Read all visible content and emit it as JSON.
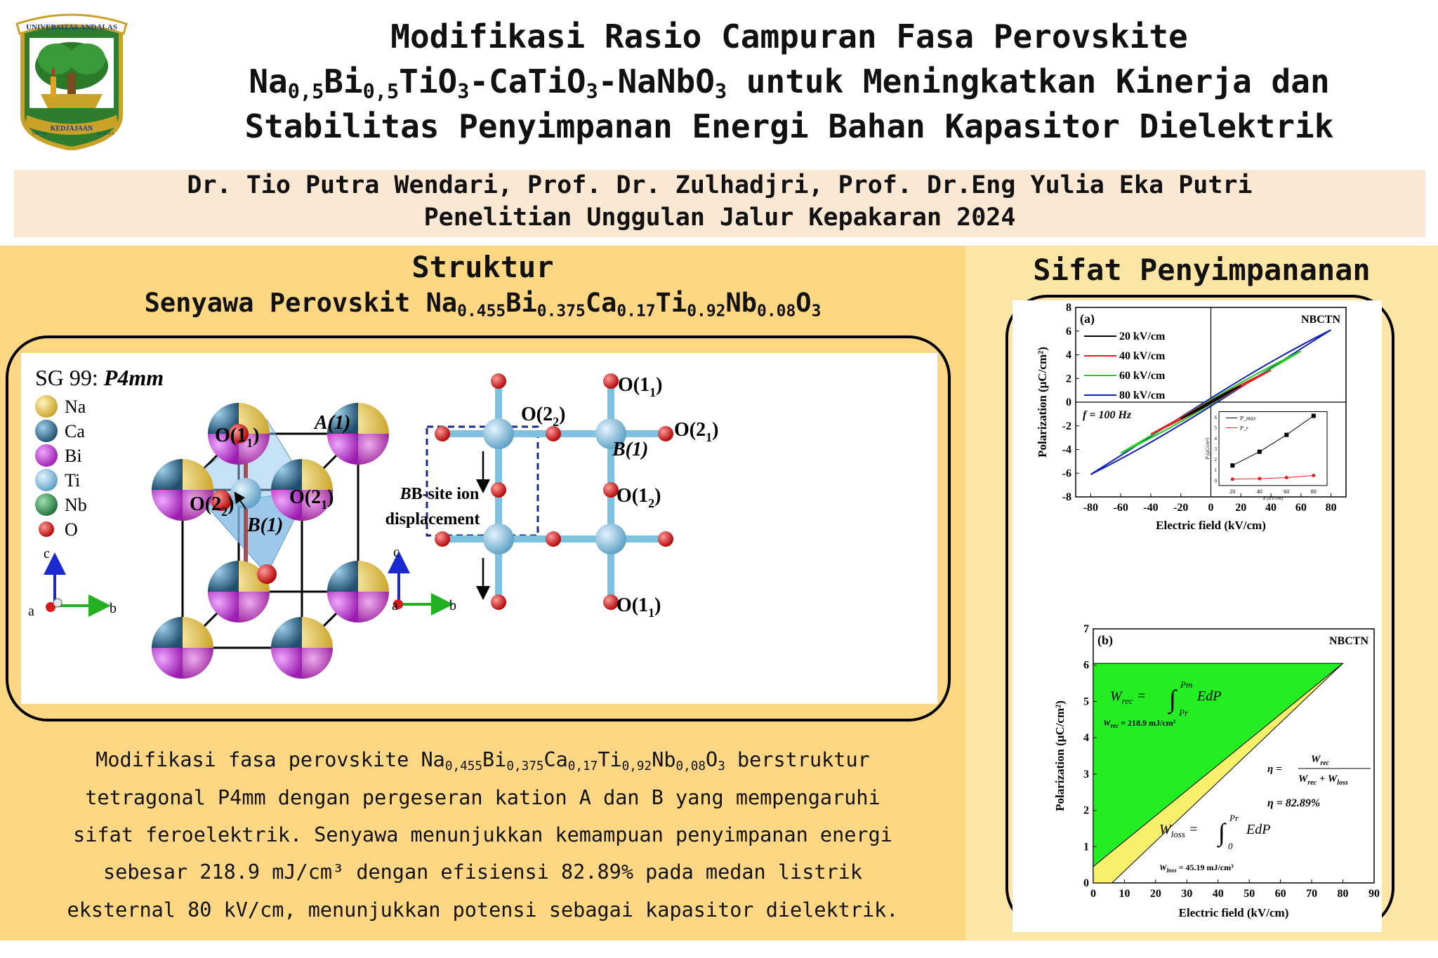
{
  "logo": {
    "top_text": "UNIVERSITAS ANDALAS",
    "ribbon_text": "KEDJAJAAN",
    "left_text": "UNTUK",
    "right_text": "BANGSA"
  },
  "title": {
    "line1": "Modifikasi Rasio Campuran Fasa Perovskite",
    "line2": {
      "t1": "Na",
      "s1": "0,5",
      "t2": "Bi",
      "s2": "0,5",
      "t3": "TiO",
      "s3": "3",
      "t4": "-CaTiO",
      "s4": "3",
      "t5": "-NaNbO",
      "s5": "3",
      "t6": " untuk Meningkatkan Kinerja dan"
    },
    "line3": "Stabilitas Penyimpanan Energi Bahan Kapasitor Dielektrik"
  },
  "authors": "Dr. Tio Putra Wendari, Prof. Dr. Zulhadjri, Prof. Dr.Eng Yulia Eka Putri",
  "program": "Penelitian Unggulan Jalur Kepakaran 2024",
  "left": {
    "heading": "Struktur",
    "subheading": {
      "prefix": "Senyawa Perovskit ",
      "e1": "Na",
      "n1": "0.455",
      "e2": "Bi",
      "n2": "0.375",
      "e3": "Ca",
      "n3": "0.17",
      "e4": "Ti",
      "n4": "0.92",
      "e5": "Nb",
      "n5": "0.08",
      "e6": "O",
      "n6": "3"
    },
    "structure": {
      "space_group_prefix": "SG 99: ",
      "space_group": "P4mm",
      "legend": [
        {
          "label": "Na",
          "color": "#e8c43c"
        },
        {
          "label": "Ca",
          "color": "#2f6e8e"
        },
        {
          "label": "Bi",
          "color": "#c43cd6"
        },
        {
          "label": "Ti",
          "color": "#7ec0e0"
        },
        {
          "label": "Nb",
          "color": "#2e8b4e"
        },
        {
          "label": "O",
          "color": "#d81c1c"
        }
      ],
      "labels": {
        "O11": "O(1",
        "O22": "O(2",
        "O21": "O(2",
        "A1": "A(1)",
        "B1": "B(1)",
        "O12": "O(1",
        "sub1": "1",
        "sub2": "2",
        "close": ")",
        "bsite1": "B-site ion",
        "bsite2": "displacement"
      },
      "axes": {
        "c": "c",
        "a": "a",
        "b": "b"
      }
    },
    "description": {
      "l1_pre": "Modifikasi fasa perovskite ",
      "f": {
        "e1": "Na",
        "n1": "0,455",
        "e2": "Bi",
        "n2": "0,375",
        "e3": "Ca",
        "n3": "0,17",
        "e4": "Ti",
        "n4": "0,92",
        "e5": "Nb",
        "n5": "0,08",
        "e6": "O",
        "n6": "3"
      },
      "l1_post": " berstruktur",
      "l2": "tetragonal P4mm dengan pergeseran kation A dan B yang mempengaruhi",
      "l3": "sifat feroelektrik. Senyawa menunjukkan kemampuan penyimpanan energi",
      "l4": "sebesar 218.9 mJ/cm³ dengan efisiensi 82.89% pada medan listrik",
      "l5": "eksternal 80 kV/cm, menunjukkan potensi sebagai kapasitor dielektrik."
    }
  },
  "right": {
    "heading": "Sifat Penyimpananan"
  },
  "chart_data": [
    {
      "type": "line",
      "panel": "(a)",
      "tag": "NBCTN",
      "xlabel": "Electric field (kV/cm)",
      "ylabel": "Polarization (μC/cm²)",
      "xlim": [
        -90,
        90
      ],
      "ylim": [
        -8,
        8
      ],
      "xticks": [
        -80,
        -60,
        -40,
        -20,
        0,
        20,
        40,
        60,
        80
      ],
      "yticks": [
        -8,
        -6,
        -4,
        -2,
        0,
        2,
        4,
        6,
        8
      ],
      "legend_position": "top-left",
      "note": "f = 100 Hz",
      "series": [
        {
          "name": "20 kV/cm",
          "color": "#000000",
          "emax": 20,
          "pmax": 1.4,
          "pr": 0.1
        },
        {
          "name": "40 kV/cm",
          "color": "#e02020",
          "emax": 40,
          "pmax": 2.7,
          "pr": 0.15
        },
        {
          "name": "60 kV/cm",
          "color": "#22cc22",
          "emax": 60,
          "pmax": 4.3,
          "pr": 0.25
        },
        {
          "name": "80 kV/cm",
          "color": "#1020b0",
          "emax": 80,
          "pmax": 6.1,
          "pr": 0.45
        }
      ],
      "inset": {
        "xlabel": "E (kV/cm)",
        "ylabel": "P (μC/cm²)",
        "x": [
          20,
          40,
          60,
          80
        ],
        "xticks": [
          20,
          40,
          60,
          80
        ],
        "yticks": [
          0,
          1,
          2,
          3,
          4,
          5,
          6
        ],
        "series": [
          {
            "name": "P_max",
            "values": [
              1.4,
              2.7,
              4.3,
              6.1
            ],
            "color": "#000000"
          },
          {
            "name": "P_r",
            "values": [
              0.1,
              0.15,
              0.25,
              0.45
            ],
            "color": "#e02020"
          }
        ]
      }
    },
    {
      "type": "area",
      "panel": "(b)",
      "tag": "NBCTN",
      "xlabel": "Electric field (kV/cm)",
      "ylabel": "Polarization (μC/cm²)",
      "xlim": [
        0,
        90
      ],
      "ylim": [
        0,
        7
      ],
      "xticks": [
        0,
        10,
        20,
        30,
        40,
        50,
        60,
        70,
        80,
        90
      ],
      "yticks": [
        0,
        1,
        2,
        3,
        4,
        5,
        6,
        7
      ],
      "pmax": 6.05,
      "pr": 0.45,
      "emax": 80,
      "charge_intercept_e": 6,
      "wrec_formula": {
        "lhs": "W",
        "lhs_sub": "rec",
        "eq": " = ",
        "upper": "Pm",
        "lower": "Pr",
        "integrand": "EdP"
      },
      "wrec_value": {
        "name": "W",
        "sub": "rec",
        "value": " = 218.9 mJ/cm³"
      },
      "eta_formula": {
        "lhs": "η = ",
        "num": "W",
        "num_sub": "rec",
        "den1": "W",
        "den1_sub": "rec",
        "plus": " + W",
        "den2_sub": "loss"
      },
      "eta_value": "η = 82.89%",
      "wloss_formula": {
        "lhs": "W",
        "lhs_sub": "loss",
        "eq": " = ",
        "upper": "Pr",
        "lower": "0",
        "integrand": "EdP"
      },
      "wloss_value": {
        "name": "W",
        "sub": "loss",
        "value": " = 45.19 mJ/cm³"
      }
    }
  ]
}
